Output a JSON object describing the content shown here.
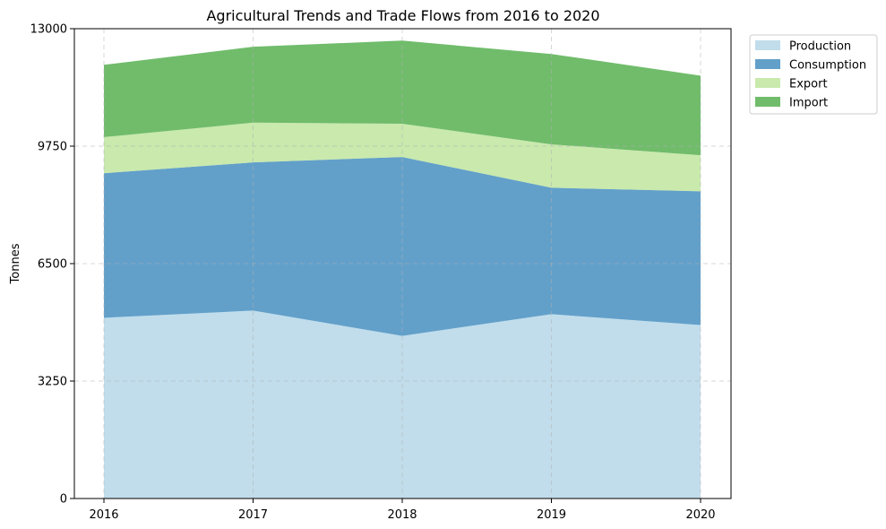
{
  "chart_data": {
    "type": "area",
    "stacked": true,
    "title": "Agricultural Trends and Trade Flows from 2016 to 2020",
    "xlabel": "",
    "ylabel": "Tonnes",
    "x": [
      "2016",
      "2017",
      "2018",
      "2019",
      "2020"
    ],
    "ylim": [
      0,
      13000
    ],
    "yticks": [
      "0",
      "3250",
      "6500",
      "9750",
      "13000"
    ],
    "grid": true,
    "legend_position": "outside-top-right",
    "series": [
      {
        "name": "Production",
        "values": [
          5000,
          5200,
          4500,
          5100,
          4800
        ],
        "color": "#a6cee3"
      },
      {
        "name": "Consumption",
        "values": [
          4000,
          4100,
          4950,
          3500,
          3700
        ],
        "color": "#1f78b4"
      },
      {
        "name": "Export",
        "values": [
          1000,
          1100,
          920,
          1200,
          1000
        ],
        "color": "#b2df8a"
      },
      {
        "name": "Import",
        "values": [
          2000,
          2100,
          2300,
          2500,
          2200
        ],
        "color": "#33a02c"
      }
    ]
  }
}
